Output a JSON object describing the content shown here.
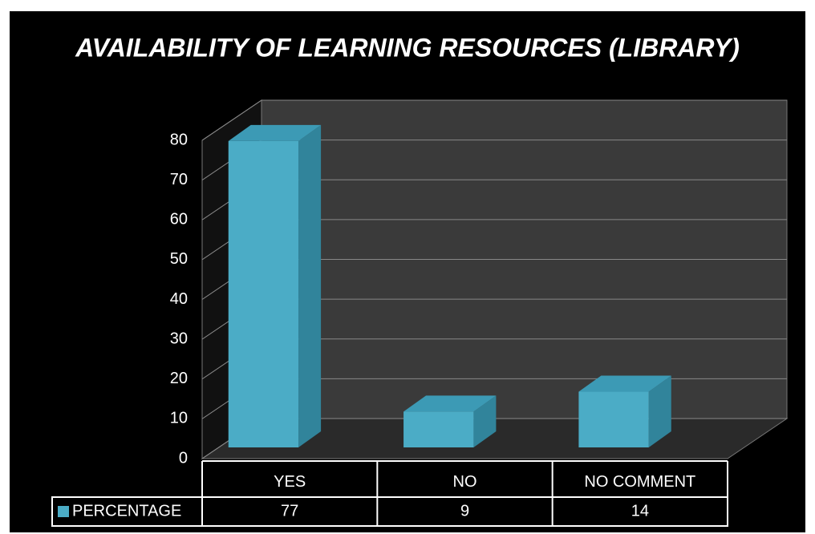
{
  "chart_data": {
    "type": "bar3d",
    "title": "AVAILABILITY OF LEARNING RESOURCES (LIBRARY)",
    "categories": [
      "YES",
      "NO",
      "NO COMMENT"
    ],
    "series": [
      {
        "name": "PERCENTAGE",
        "color": "#4bacc6",
        "values": [
          77,
          9,
          14
        ]
      }
    ],
    "ylim": [
      0,
      80
    ],
    "yticks": [
      0,
      10,
      20,
      30,
      40,
      50,
      60,
      70,
      80
    ],
    "grid": true,
    "legend": "data-table"
  }
}
